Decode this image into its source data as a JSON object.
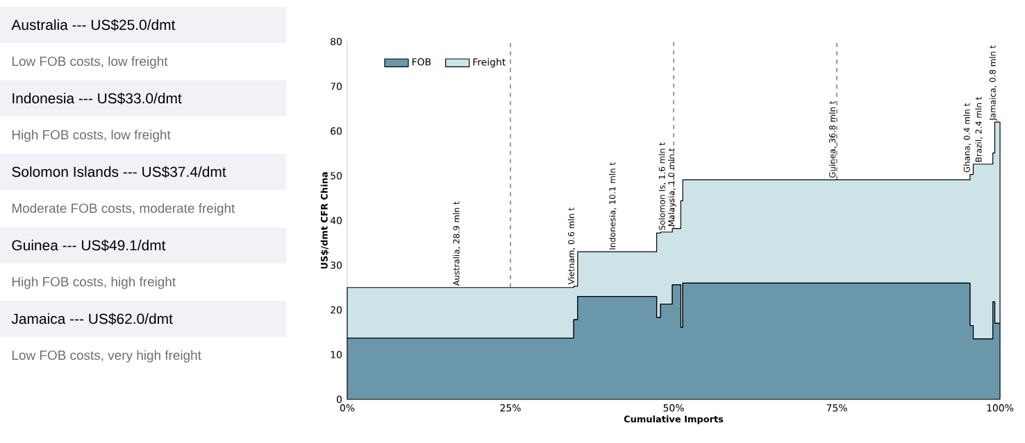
{
  "chart_data": [
    {
      "type": "other",
      "annotations": [
        "Australia --- US$25.0/dmt",
        "Low FOB costs, low freight",
        "Indonesia --- US$33.0/dmt",
        "High FOB costs, low freight",
        "Solomon Islands --- US$37.4/dmt",
        "Moderate FOB costs, moderate freight",
        "Guinea --- US$49.1/dmt",
        "High FOB costs, high freight",
        "Jamaica --- US$62.0/dmt",
        "Low FOB costs, very high freight"
      ]
    },
    {
      "type": "area",
      "stacked": true,
      "xlabel": "Cumulative Imports",
      "ylabel": "US$/dmt CFR China",
      "legend": "top left",
      "marker": "none",
      "grid": false,
      "x": [
        0,
        34.7,
        34.7,
        35.3,
        35.3,
        47.4,
        47.4,
        48.0,
        48.0,
        49.8,
        49.8,
        51.1,
        51.1,
        51.4,
        51.4,
        95.4,
        95.4,
        95.9,
        95.9,
        98.9,
        98.9,
        99.2,
        99.2,
        100
      ],
      "series": [
        {
          "name": "FOB",
          "color": "#6b97ab",
          "values": [
            13.7,
            13.7,
            17.8,
            17.8,
            23.0,
            23.0,
            18.3,
            18.3,
            21.3,
            21.3,
            25.6,
            25.6,
            16.1,
            16.1,
            26.0,
            26.0,
            16.5,
            16.5,
            13.5,
            13.5,
            21.8,
            21.8,
            17.0,
            17.0
          ]
        },
        {
          "name": "Freight",
          "color": "#cde3e8",
          "values": [
            11.3,
            11.3,
            7.5,
            7.5,
            10.0,
            10.0,
            18.9,
            18.9,
            16.1,
            16.1,
            12.6,
            12.6,
            28.3,
            28.3,
            23.1,
            23.1,
            33.8,
            33.8,
            39.1,
            39.1,
            33.3,
            33.3,
            45.0,
            45.0
          ]
        }
      ],
      "xlim": [
        0,
        100
      ],
      "ylim": [
        0,
        80
      ],
      "xticks": [
        {
          "value": 0,
          "label": "0%"
        },
        {
          "value": 25,
          "label": "25%"
        },
        {
          "value": 50,
          "label": "50%"
        },
        {
          "value": 75,
          "label": "75%"
        },
        {
          "value": 100,
          "label": "100%"
        }
      ],
      "yticks": [
        0,
        10,
        20,
        30,
        40,
        50,
        60,
        70,
        80
      ],
      "ref_lines": [
        {
          "axis": "x",
          "value": 25,
          "line_style": "dashed"
        },
        {
          "axis": "x",
          "value": 50,
          "line_style": "dashed"
        },
        {
          "axis": "x",
          "value": 75,
          "line_style": "dashed"
        }
      ],
      "annotations": [
        {
          "text": "Australia, 28.9 mln t",
          "x": 17.4,
          "y": 25.0
        },
        {
          "text": "Vietnam, 0.6 mln t",
          "x": 35.0,
          "y": 25.3
        },
        {
          "text": "Indonesia, 10.1 mln t",
          "x": 41.3,
          "y": 33.0
        },
        {
          "text": "Solomon Is, 1.6 mln t",
          "x": 48.9,
          "y": 37.4
        },
        {
          "text": "Malaysia, 1.0 mln t",
          "x": 50.4,
          "y": 38.2
        },
        {
          "text": "Guinea, 36.8 mln t",
          "x": 75.0,
          "y": 49.1
        },
        {
          "text": "Ghana, 0.4 mln t",
          "x": 95.6,
          "y": 50.3
        },
        {
          "text": "Brazil, 2.4 mln t",
          "x": 97.4,
          "y": 52.6
        },
        {
          "text": "Jamaica, 0.8 mln t",
          "x": 99.6,
          "y": 62.0
        }
      ]
    }
  ]
}
